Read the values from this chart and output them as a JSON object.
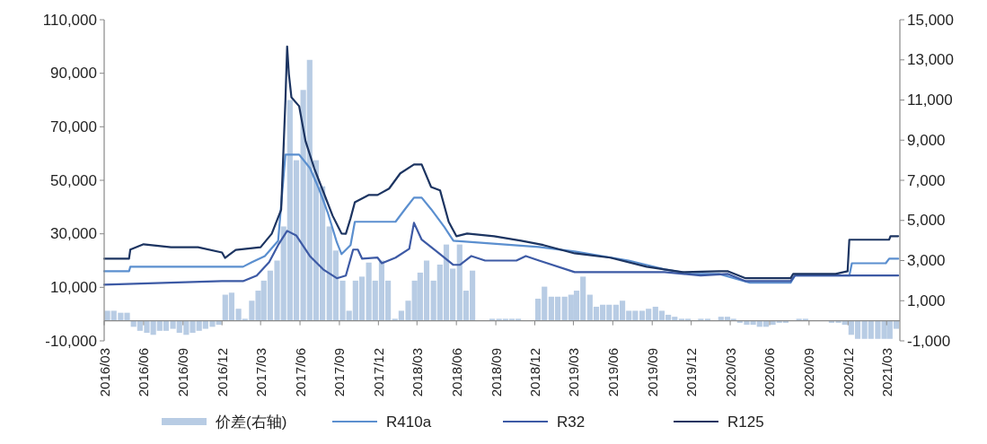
{
  "chart_data": {
    "type": "line",
    "xlim": [
      "2016-03-01",
      "2021-04-01"
    ],
    "xticks": [
      {
        "value": "2016-03-01",
        "label": "2016/03"
      },
      {
        "value": "2016-06-01",
        "label": "2016/06"
      },
      {
        "value": "2016-09-01",
        "label": "2016/09"
      },
      {
        "value": "2016-12-01",
        "label": "2016/12"
      },
      {
        "value": "2017-03-01",
        "label": "2017/03"
      },
      {
        "value": "2017-06-01",
        "label": "2017/06"
      },
      {
        "value": "2017-09-01",
        "label": "2017/09"
      },
      {
        "value": "2017-12-01",
        "label": "2017/12"
      },
      {
        "value": "2018-03-01",
        "label": "2018/03"
      },
      {
        "value": "2018-06-01",
        "label": "2018/06"
      },
      {
        "value": "2018-09-01",
        "label": "2018/09"
      },
      {
        "value": "2018-12-01",
        "label": "2018/12"
      },
      {
        "value": "2019-03-01",
        "label": "2019/03"
      },
      {
        "value": "2019-06-01",
        "label": "2019/06"
      },
      {
        "value": "2019-09-01",
        "label": "2019/09"
      },
      {
        "value": "2019-12-01",
        "label": "2019/12"
      },
      {
        "value": "2020-03-01",
        "label": "2020/03"
      },
      {
        "value": "2020-06-01",
        "label": "2020/06"
      },
      {
        "value": "2020-09-01",
        "label": "2020/09"
      },
      {
        "value": "2020-12-01",
        "label": "2020/12"
      },
      {
        "value": "2021-03-01",
        "label": "2021/03"
      }
    ],
    "ylim": [
      -10000,
      110000
    ],
    "yticks": [
      {
        "value": -10000,
        "label": "-10,000"
      },
      {
        "value": 10000,
        "label": "10,000"
      },
      {
        "value": 30000,
        "label": "30,000"
      },
      {
        "value": 50000,
        "label": "50,000"
      },
      {
        "value": 70000,
        "label": "70,000"
      },
      {
        "value": 90000,
        "label": "90,000"
      },
      {
        "value": 110000,
        "label": "110,000"
      }
    ],
    "y2lim": [
      -1000,
      15000
    ],
    "y2ticks": [
      {
        "value": -1000,
        "label": "-1,000"
      },
      {
        "value": 1000,
        "label": "1,000"
      },
      {
        "value": 3000,
        "label": "3,000"
      },
      {
        "value": 5000,
        "label": "5,000"
      },
      {
        "value": 7000,
        "label": "7,000"
      },
      {
        "value": 9000,
        "label": "9,000"
      },
      {
        "value": 11000,
        "label": "11,000"
      },
      {
        "value": 13000,
        "label": "13,000"
      },
      {
        "value": 15000,
        "label": "15,000"
      }
    ],
    "legend": "bottom",
    "series": [
      {
        "name": "价差(右轴)",
        "type": "bar",
        "axis": "y2",
        "color": "#b8cce4",
        "x": [
          "2016-03-01",
          "2016-03-16",
          "2016-04-01",
          "2016-04-16",
          "2016-05-01",
          "2016-05-16",
          "2016-06-01",
          "2016-06-16",
          "2016-07-01",
          "2016-07-16",
          "2016-08-01",
          "2016-08-16",
          "2016-09-01",
          "2016-09-16",
          "2016-10-01",
          "2016-10-16",
          "2016-11-01",
          "2016-11-16",
          "2016-12-01",
          "2016-12-16",
          "2017-01-01",
          "2017-01-16",
          "2017-02-01",
          "2017-02-16",
          "2017-03-01",
          "2017-03-16",
          "2017-04-01",
          "2017-04-16",
          "2017-05-01",
          "2017-05-16",
          "2017-06-01",
          "2017-06-16",
          "2017-07-01",
          "2017-07-16",
          "2017-08-01",
          "2017-08-16",
          "2017-09-01",
          "2017-09-16",
          "2017-10-01",
          "2017-10-16",
          "2017-11-01",
          "2017-11-16",
          "2017-12-01",
          "2017-12-16",
          "2018-01-01",
          "2018-01-16",
          "2018-02-01",
          "2018-02-16",
          "2018-03-01",
          "2018-03-16",
          "2018-04-01",
          "2018-04-16",
          "2018-05-01",
          "2018-05-16",
          "2018-06-01",
          "2018-06-16",
          "2018-07-01",
          "2018-07-16",
          "2018-08-01",
          "2018-08-16",
          "2018-09-01",
          "2018-09-16",
          "2018-10-01",
          "2018-10-16",
          "2018-11-01",
          "2018-11-16",
          "2018-12-01",
          "2018-12-16",
          "2019-01-01",
          "2019-01-16",
          "2019-02-01",
          "2019-02-16",
          "2019-03-01",
          "2019-03-16",
          "2019-04-01",
          "2019-04-16",
          "2019-05-01",
          "2019-05-16",
          "2019-06-01",
          "2019-06-16",
          "2019-07-01",
          "2019-07-16",
          "2019-08-01",
          "2019-08-16",
          "2019-09-01",
          "2019-09-16",
          "2019-10-01",
          "2019-10-16",
          "2019-11-01",
          "2019-11-16",
          "2019-12-01",
          "2019-12-16",
          "2020-01-01",
          "2020-01-16",
          "2020-02-01",
          "2020-02-16",
          "2020-03-01",
          "2020-03-16",
          "2020-04-01",
          "2020-04-16",
          "2020-05-01",
          "2020-05-16",
          "2020-06-01",
          "2020-06-16",
          "2020-07-01",
          "2020-07-16",
          "2020-08-01",
          "2020-08-16",
          "2020-09-01",
          "2020-09-16",
          "2020-10-01",
          "2020-10-16",
          "2020-11-01",
          "2020-11-16",
          "2020-12-01",
          "2020-12-16",
          "2021-01-01",
          "2021-01-16",
          "2021-02-01",
          "2021-02-16",
          "2021-03-01",
          "2021-03-16"
        ],
        "values": [
          500,
          500,
          400,
          400,
          -300,
          -500,
          -600,
          -700,
          -500,
          -500,
          -400,
          -600,
          -700,
          -600,
          -500,
          -400,
          -300,
          -200,
          1300,
          1400,
          600,
          100,
          1000,
          1500,
          2000,
          2500,
          3000,
          4700,
          11000,
          8000,
          11500,
          13000,
          8000,
          6700,
          4700,
          3500,
          2000,
          500,
          2000,
          2200,
          2900,
          2000,
          3000,
          2000,
          100,
          500,
          1000,
          2000,
          2400,
          3000,
          2000,
          2800,
          3800,
          2600,
          3800,
          1500,
          2500,
          0,
          0,
          100,
          100,
          100,
          100,
          100,
          0,
          0,
          1100,
          1700,
          1200,
          1200,
          1200,
          1300,
          1500,
          2200,
          1300,
          700,
          800,
          800,
          800,
          1000,
          500,
          500,
          500,
          600,
          700,
          500,
          300,
          200,
          100,
          100,
          0,
          100,
          100,
          0,
          200,
          200,
          100,
          -100,
          -200,
          -200,
          -300,
          -300,
          -200,
          -100,
          -100,
          0,
          100,
          100,
          0,
          0,
          0,
          -100,
          -100,
          -200,
          -700,
          -900,
          -900,
          -900,
          -900,
          -900,
          -900,
          -400
        ]
      },
      {
        "name": "R410a",
        "color": "#5b8fcf",
        "x": [
          "2016-03-01",
          "2016-04-28",
          "2016-05-01",
          "2017-01-19",
          "2017-02-09",
          "2017-03-11",
          "2017-04-11",
          "2017-04-28",
          "2017-05-30",
          "2017-06-24",
          "2017-07-15",
          "2017-08-05",
          "2017-08-26",
          "2017-09-06",
          "2017-09-27",
          "2017-10-07",
          "2018-01-10",
          "2018-02-01",
          "2018-02-22",
          "2018-03-12",
          "2018-04-03",
          "2018-05-04",
          "2018-05-25",
          "2018-12-11",
          "2019-03-04",
          "2019-07-08",
          "2019-09-30",
          "2019-12-02",
          "2020-02-04",
          "2020-04-16",
          "2020-07-20",
          "2020-07-30",
          "2020-12-04",
          "2020-12-10",
          "2021-02-27",
          "2021-03-07",
          "2021-03-28"
        ],
        "values": [
          16000,
          16000,
          17700,
          17700,
          19400,
          21700,
          27400,
          59600,
          59600,
          54600,
          46900,
          37800,
          26800,
          22400,
          25800,
          34500,
          34500,
          39200,
          43500,
          43500,
          39200,
          32500,
          27400,
          25100,
          23400,
          20000,
          16700,
          15000,
          15000,
          11700,
          11700,
          14400,
          14400,
          19000,
          19000,
          20700,
          20700
        ]
      },
      {
        "name": "R32",
        "color": "#3d5aa5",
        "x": [
          "2016-03-01",
          "2016-12-01",
          "2017-01-19",
          "2017-02-20",
          "2017-03-21",
          "2017-04-11",
          "2017-05-02",
          "2017-05-23",
          "2017-06-24",
          "2017-07-25",
          "2017-08-26",
          "2017-09-16",
          "2017-10-03",
          "2017-10-14",
          "2017-10-24",
          "2017-11-29",
          "2017-12-09",
          "2018-01-10",
          "2018-02-11",
          "2018-02-22",
          "2018-03-12",
          "2018-04-24",
          "2018-05-25",
          "2018-06-09",
          "2018-07-06",
          "2018-08-07",
          "2018-10-19",
          "2018-11-10",
          "2018-12-11",
          "2019-03-04",
          "2019-07-08",
          "2019-09-30",
          "2019-12-23",
          "2020-02-25",
          "2020-04-06",
          "2020-07-20",
          "2020-07-30",
          "2021-03-28"
        ],
        "values": [
          11000,
          12300,
          12300,
          14400,
          19400,
          25800,
          31100,
          29400,
          21700,
          16700,
          13400,
          14400,
          24100,
          24100,
          20700,
          21100,
          19000,
          21100,
          24400,
          34100,
          27800,
          22400,
          18400,
          18400,
          21700,
          20000,
          20000,
          21700,
          20000,
          15700,
          15700,
          15700,
          14400,
          15000,
          12300,
          12300,
          14400,
          14400
        ]
      },
      {
        "name": "R125",
        "color": "#1c3461",
        "x": [
          "2016-03-01",
          "2016-04-28",
          "2016-05-01",
          "2016-06-01",
          "2016-08-04",
          "2016-10-06",
          "2016-12-01",
          "2016-12-08",
          "2017-01-02",
          "2017-03-01",
          "2017-03-27",
          "2017-04-18",
          "2017-04-28",
          "2017-05-02",
          "2017-05-06",
          "2017-05-12",
          "2017-05-30",
          "2017-06-14",
          "2017-07-04",
          "2017-07-25",
          "2017-08-16",
          "2017-09-06",
          "2017-09-16",
          "2017-09-27",
          "2017-10-07",
          "2017-11-08",
          "2017-11-29",
          "2017-12-26",
          "2018-01-21",
          "2018-02-22",
          "2018-03-12",
          "2018-04-03",
          "2018-04-24",
          "2018-05-14",
          "2018-06-01",
          "2018-06-26",
          "2018-08-28",
          "2018-10-30",
          "2018-12-21",
          "2019-03-04",
          "2019-05-26",
          "2019-08-19",
          "2019-11-11",
          "2020-02-04",
          "2020-02-25",
          "2020-04-06",
          "2020-07-20",
          "2020-07-26",
          "2020-11-02",
          "2020-11-30",
          "2020-12-04",
          "2021-03-07",
          "2021-03-10",
          "2021-03-28"
        ],
        "values": [
          20700,
          20700,
          24100,
          26100,
          25000,
          25000,
          23000,
          21000,
          24000,
          25000,
          30000,
          39000,
          80000,
          100000,
          89800,
          81000,
          77700,
          64600,
          54600,
          45900,
          36800,
          30100,
          30000,
          35800,
          41800,
          44500,
          44500,
          46900,
          52600,
          55900,
          55900,
          47500,
          46200,
          34500,
          29100,
          30100,
          29100,
          27400,
          25800,
          22700,
          21100,
          17700,
          15700,
          16000,
          16000,
          13400,
          13400,
          15000,
          15000,
          16000,
          27800,
          27800,
          29100,
          29100
        ]
      }
    ]
  }
}
